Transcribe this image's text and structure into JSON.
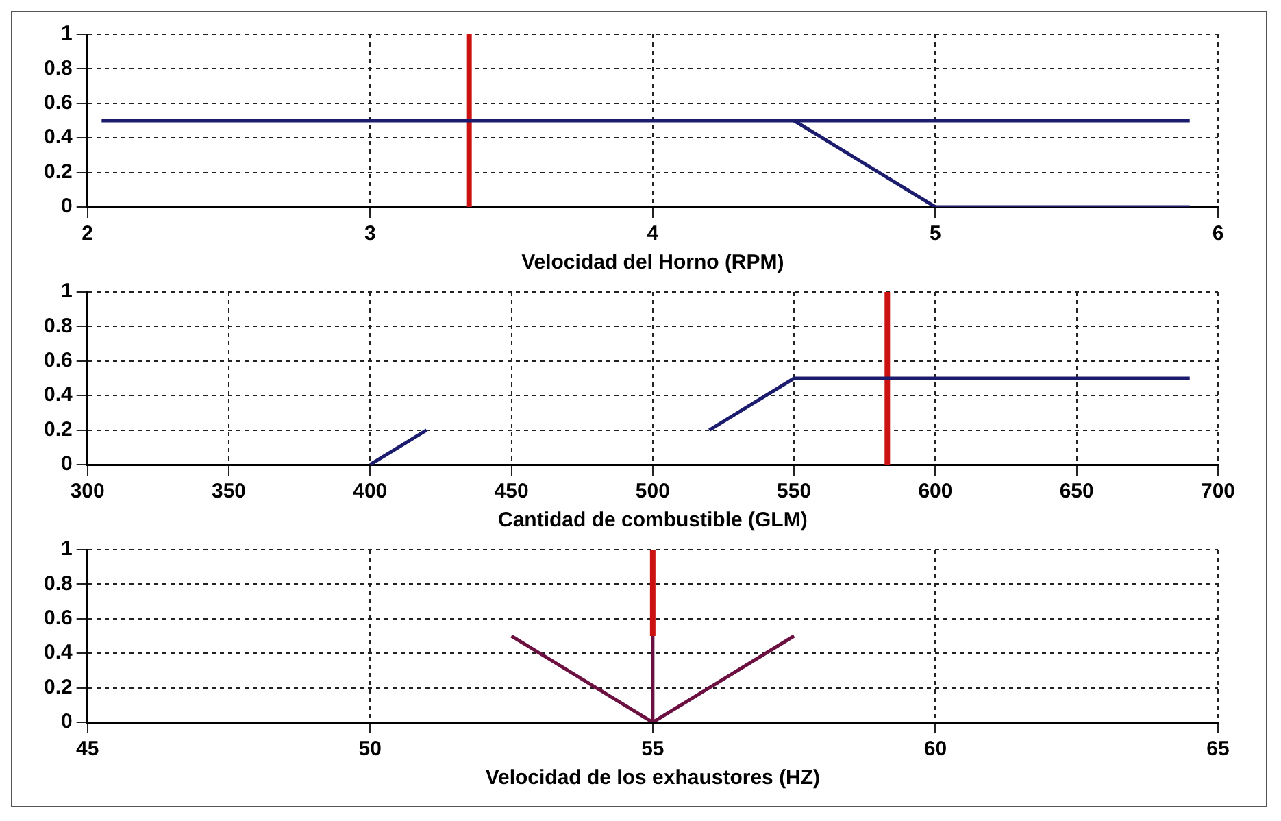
{
  "chart_data": [
    {
      "type": "line",
      "xlabel": "Velocidad del Horno (RPM)",
      "xlim": [
        2,
        6
      ],
      "xticks": [
        2,
        3,
        4,
        5,
        6
      ],
      "ylim": [
        0,
        1
      ],
      "yticks": [
        0,
        0.2,
        0.4,
        0.6,
        0.8,
        1
      ],
      "grid": true,
      "series": [
        {
          "color": "#1c1c6e",
          "x": [
            2.05,
            5.9
          ],
          "values": [
            0.5,
            0.5
          ]
        },
        {
          "color": "#1c1c6e",
          "x": [
            4.5,
            5,
            5.9
          ],
          "values": [
            0.5,
            0,
            0
          ]
        },
        {
          "color": "#cc1111",
          "x": [
            3.35,
            3.35
          ],
          "values": [
            0,
            1
          ]
        }
      ]
    },
    {
      "type": "line",
      "xlabel": "Cantidad de combustible (GLM)",
      "xlim": [
        300,
        700
      ],
      "xticks": [
        300,
        350,
        400,
        450,
        500,
        550,
        600,
        650,
        700
      ],
      "ylim": [
        0,
        1
      ],
      "yticks": [
        0,
        0.2,
        0.4,
        0.6,
        0.8,
        1
      ],
      "grid": true,
      "series": [
        {
          "color": "#1c1c6e",
          "x": [
            400,
            420
          ],
          "values": [
            0,
            0.2
          ]
        },
        {
          "color": "#1c1c6e",
          "x": [
            520,
            550,
            690
          ],
          "values": [
            0.2,
            0.5,
            0.5
          ]
        },
        {
          "color": "#cc1111",
          "x": [
            583,
            583
          ],
          "values": [
            0,
            1
          ]
        }
      ]
    },
    {
      "type": "line",
      "xlabel": "Velocidad de los exhaustores (HZ)",
      "xlim": [
        45,
        65
      ],
      "xticks": [
        45,
        50,
        55,
        60,
        65
      ],
      "ylim": [
        0,
        1
      ],
      "yticks": [
        0,
        0.2,
        0.4,
        0.6,
        0.8,
        1
      ],
      "grid": true,
      "series": [
        {
          "color": "#6b1040",
          "x": [
            52.5,
            55,
            57.5
          ],
          "values": [
            0.5,
            0,
            0.5
          ]
        },
        {
          "color": "#cc1111",
          "x": [
            55,
            55
          ],
          "values": [
            0.5,
            1
          ]
        },
        {
          "color": "#6b1040",
          "x": [
            55,
            55
          ],
          "values": [
            0,
            0.5
          ]
        }
      ]
    }
  ]
}
